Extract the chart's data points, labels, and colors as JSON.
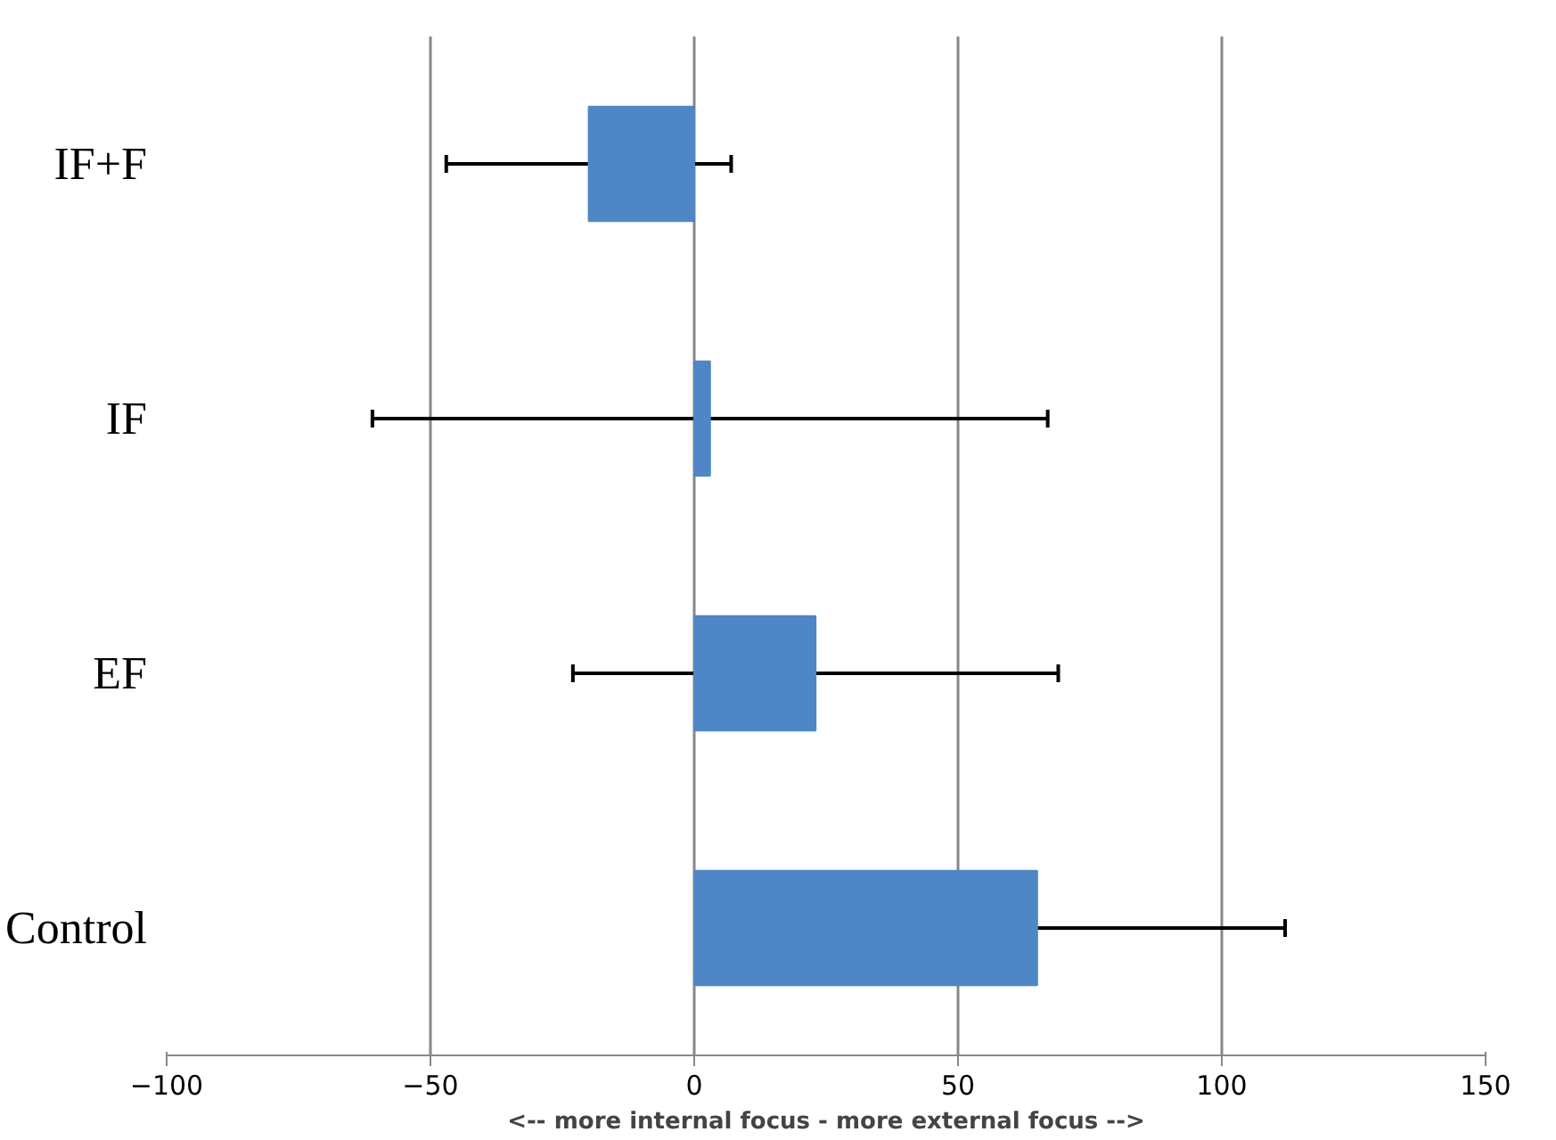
{
  "chart_data": {
    "type": "bar",
    "orientation": "horizontal",
    "categories": [
      "IF+F",
      "IF",
      "EF",
      "Control"
    ],
    "values": [
      -20,
      3,
      23,
      65
    ],
    "errors": [
      27,
      64,
      46,
      47
    ],
    "color": "#4f86c6",
    "xlim": [
      -100,
      150
    ],
    "xticks": [
      -100,
      -50,
      0,
      50,
      100,
      150
    ],
    "xlabel": "<-- more internal focus - more external focus -->",
    "grid": "x"
  }
}
